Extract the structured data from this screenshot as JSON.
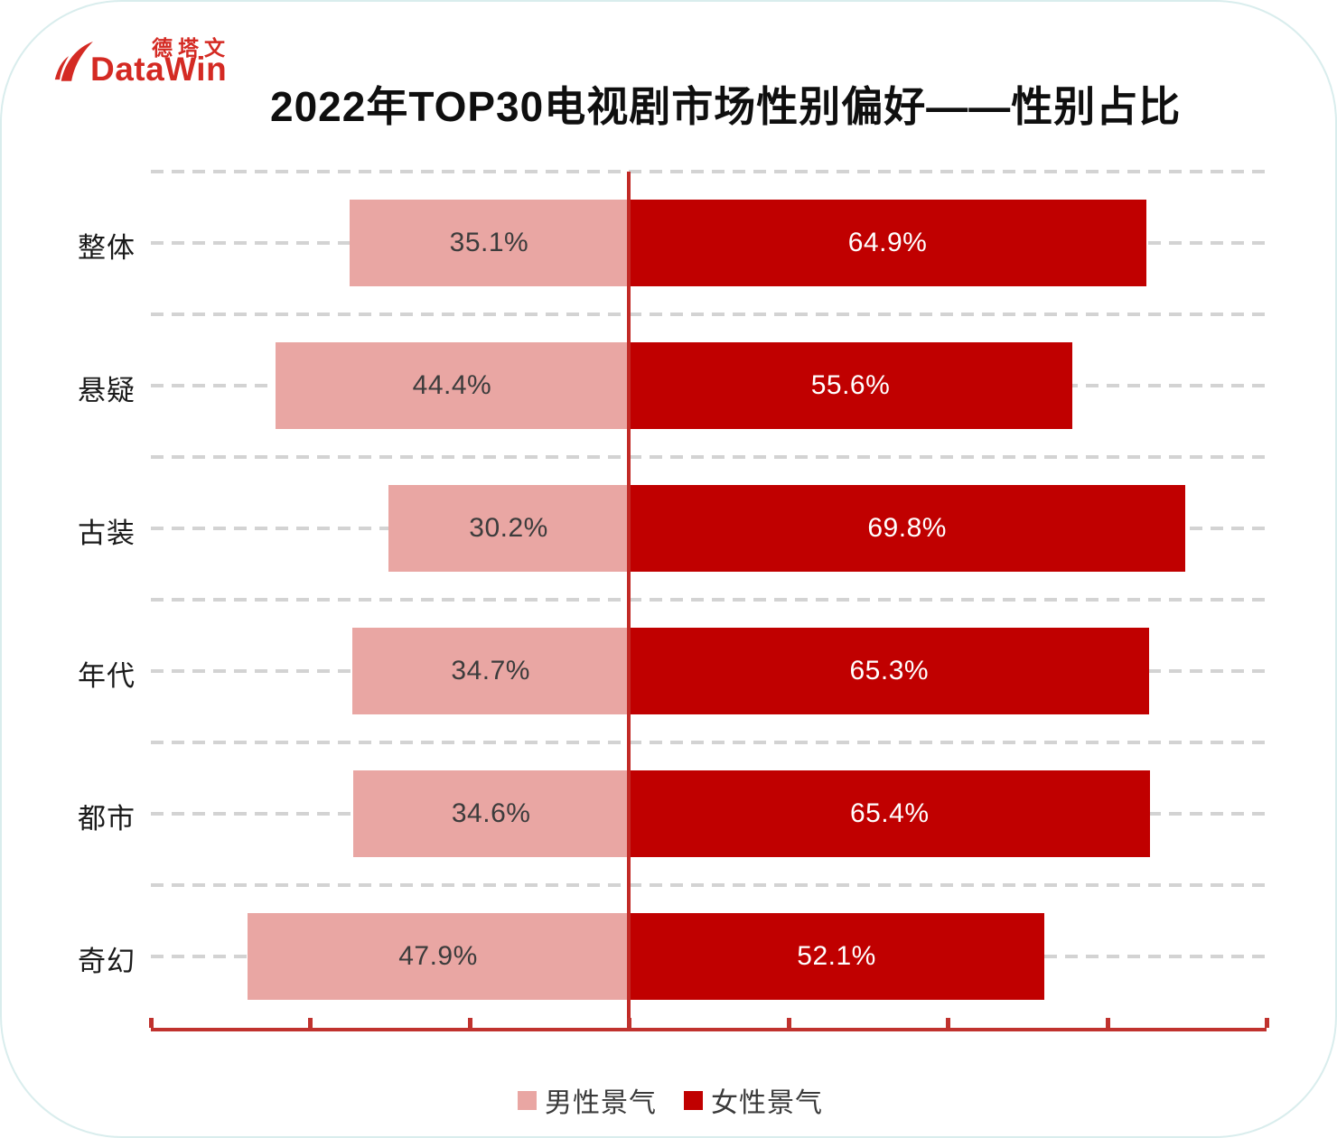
{
  "logo": {
    "cn": "德塔文",
    "en": "DataWin",
    "color": "#d42a23"
  },
  "title": "2022年TOP30电视剧市场性别偏好——性别占比",
  "chart_data": {
    "type": "bar",
    "variant": "horizontal-diverging",
    "title": "2022年TOP30电视剧市场性别偏好——性别占比",
    "categories": [
      "整体",
      "悬疑",
      "古装",
      "年代",
      "都市",
      "奇幻"
    ],
    "series": [
      {
        "name": "男性景气",
        "side": "left",
        "color": "#e9a6a3",
        "label_color": "#3c3c3c",
        "values": [
          35.1,
          44.4,
          30.2,
          34.7,
          34.6,
          47.9
        ]
      },
      {
        "name": "女性景气",
        "side": "right",
        "color": "#c00000",
        "label_color": "#ffffff",
        "values": [
          64.9,
          55.6,
          69.8,
          65.3,
          65.4,
          52.1
        ]
      }
    ],
    "value_label_format": "one-decimal-percent",
    "x_domain": [
      -60,
      80
    ],
    "x_tick_step": 20,
    "x_tick_labels_visible": false,
    "grid": "horizontal-dashed",
    "grid_color": "#d3d3d3",
    "axis_color": "#c0322e",
    "center_line_color": "#c22a26",
    "legend_position": "bottom"
  }
}
